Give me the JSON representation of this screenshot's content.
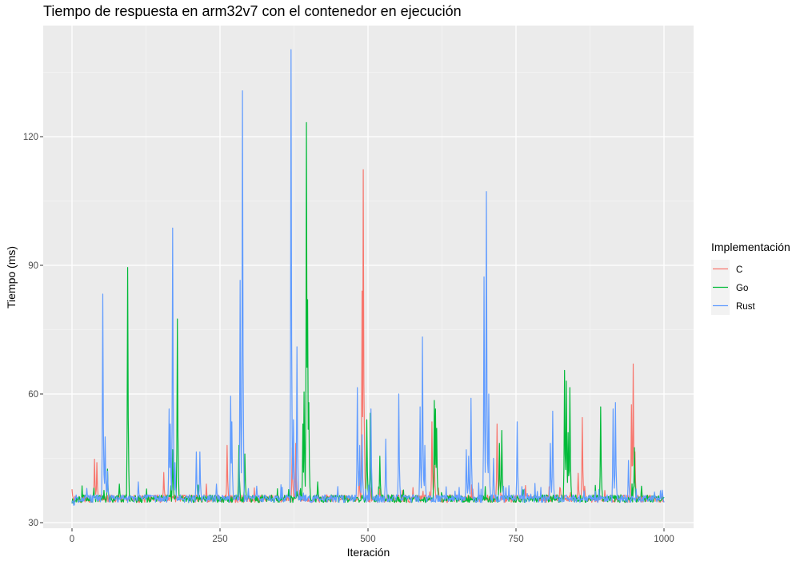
{
  "chart_data": {
    "type": "line",
    "title": "Tiempo de respuesta en arm32v7 con el contenedor en ejecución",
    "xlabel": "Iteración",
    "ylabel": "Tiempo (ms)",
    "xlim": [
      0,
      1000
    ],
    "ylim": [
      30,
      140
    ],
    "x_ticks": [
      0,
      250,
      500,
      750,
      1000
    ],
    "y_ticks": [
      30,
      60,
      90,
      120
    ],
    "grid": true,
    "baseline_ms": 35.5,
    "legend": {
      "title": "Implementación",
      "position": "right"
    },
    "series": [
      {
        "name": "C",
        "color": "#F8766D",
        "spikes": [
          [
            0,
            37.8
          ],
          [
            38,
            44.8
          ],
          [
            42,
            44
          ],
          [
            155,
            41.7
          ],
          [
            262,
            48
          ],
          [
            372,
            47.5
          ],
          [
            378,
            48.5
          ],
          [
            485,
            42
          ],
          [
            490,
            84
          ],
          [
            492,
            112.3
          ],
          [
            494,
            50
          ],
          [
            520,
            38
          ],
          [
            608,
            53.5
          ],
          [
            612,
            47
          ],
          [
            718,
            53
          ],
          [
            722,
            48
          ],
          [
            825,
            38
          ],
          [
            855,
            41.5
          ],
          [
            862,
            54.5
          ],
          [
            866,
            38.5
          ],
          [
            945,
            57.5
          ],
          [
            948,
            67
          ],
          [
            951,
            46.5
          ]
        ]
      },
      {
        "name": "Go",
        "color": "#00BA38",
        "spikes": [
          [
            60,
            42.5
          ],
          [
            80,
            39
          ],
          [
            94,
            89.5
          ],
          [
            170,
            47
          ],
          [
            178,
            77.5
          ],
          [
            282,
            48
          ],
          [
            292,
            46
          ],
          [
            390,
            53
          ],
          [
            392,
            60.5
          ],
          [
            396,
            123.3
          ],
          [
            398,
            82
          ],
          [
            400,
            58
          ],
          [
            415,
            39.5
          ],
          [
            498,
            54
          ],
          [
            504,
            55.5
          ],
          [
            520,
            45.5
          ],
          [
            612,
            58.5
          ],
          [
            614,
            56.5
          ],
          [
            616,
            52
          ],
          [
            722,
            48.5
          ],
          [
            726,
            51.5
          ],
          [
            832,
            65.5
          ],
          [
            835,
            63
          ],
          [
            838,
            51
          ],
          [
            841,
            61.5
          ],
          [
            893,
            57
          ],
          [
            950,
            47.5
          ],
          [
            962,
            38.5
          ]
        ]
      },
      {
        "name": "Rust",
        "color": "#619CFF",
        "spikes": [
          [
            25,
            38
          ],
          [
            52,
            83.3
          ],
          [
            56,
            50
          ],
          [
            60,
            42
          ],
          [
            112,
            39.5
          ],
          [
            164,
            56.5
          ],
          [
            166,
            53
          ],
          [
            170,
            98.7
          ],
          [
            174,
            44
          ],
          [
            210,
            46.5
          ],
          [
            216,
            46.5
          ],
          [
            244,
            39
          ],
          [
            268,
            59.5
          ],
          [
            270,
            53.5
          ],
          [
            284,
            86.5
          ],
          [
            288,
            130.7
          ],
          [
            312,
            38.5
          ],
          [
            370,
            140.3
          ],
          [
            374,
            54
          ],
          [
            380,
            71
          ],
          [
            482,
            61.5
          ],
          [
            486,
            48
          ],
          [
            490,
            50.5
          ],
          [
            505,
            56.5
          ],
          [
            530,
            49.5
          ],
          [
            552,
            60
          ],
          [
            588,
            57
          ],
          [
            592,
            73.3
          ],
          [
            596,
            48
          ],
          [
            666,
            47
          ],
          [
            670,
            45.5
          ],
          [
            674,
            59
          ],
          [
            696,
            87.3
          ],
          [
            700,
            107.2
          ],
          [
            704,
            60
          ],
          [
            712,
            45
          ],
          [
            752,
            53.5
          ],
          [
            808,
            48.5
          ],
          [
            812,
            56
          ],
          [
            914,
            56.5
          ],
          [
            918,
            58
          ],
          [
            940,
            44.5
          ]
        ]
      }
    ]
  }
}
